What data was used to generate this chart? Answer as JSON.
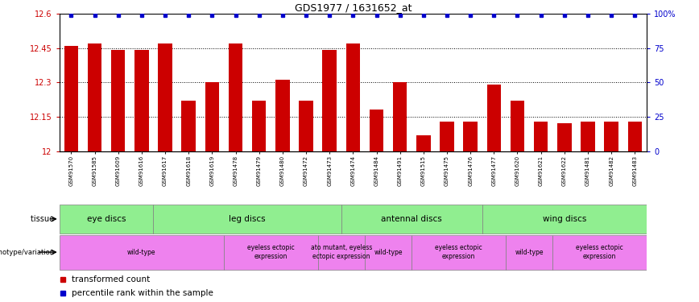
{
  "title": "GDS1977 / 1631652_at",
  "samples": [
    "GSM91570",
    "GSM91585",
    "GSM91609",
    "GSM91616",
    "GSM91617",
    "GSM91618",
    "GSM91619",
    "GSM91478",
    "GSM91479",
    "GSM91480",
    "GSM91472",
    "GSM91473",
    "GSM91474",
    "GSM91484",
    "GSM91491",
    "GSM91515",
    "GSM91475",
    "GSM91476",
    "GSM91477",
    "GSM91620",
    "GSM91621",
    "GSM91622",
    "GSM91481",
    "GSM91482",
    "GSM91483"
  ],
  "bar_values": [
    12.46,
    12.47,
    12.44,
    12.44,
    12.47,
    12.22,
    12.3,
    12.47,
    12.22,
    12.31,
    12.22,
    12.44,
    12.47,
    12.18,
    12.3,
    12.07,
    12.13,
    12.13,
    12.29,
    12.22,
    12.13,
    12.12,
    12.13,
    12.13,
    12.13
  ],
  "ymin": 12.0,
  "ymax": 12.6,
  "yticks": [
    12.0,
    12.15,
    12.3,
    12.45,
    12.6
  ],
  "ytick_labels": [
    "12",
    "12.15",
    "12.3",
    "12.45",
    "12.6"
  ],
  "right_yticks": [
    0,
    25,
    50,
    75,
    100
  ],
  "right_ytick_labels": [
    "0",
    "25",
    "50",
    "75",
    "100%"
  ],
  "bar_color": "#cc0000",
  "dot_color": "#0000cc",
  "tissue_color": "#90ee90",
  "geno_color": "#ee82ee",
  "xtick_bg": "#d3d3d3",
  "tissue_data": [
    {
      "label": "eye discs",
      "start": 0,
      "end": 4
    },
    {
      "label": "leg discs",
      "start": 4,
      "end": 12
    },
    {
      "label": "antennal discs",
      "start": 12,
      "end": 18
    },
    {
      "label": "wing discs",
      "start": 18,
      "end": 25
    }
  ],
  "geno_data": [
    {
      "label": "wild-type",
      "start": 0,
      "end": 7
    },
    {
      "label": "eyeless ectopic\nexpression",
      "start": 7,
      "end": 11
    },
    {
      "label": "ato mutant, eyeless\nectopic expression",
      "start": 11,
      "end": 13
    },
    {
      "label": "wild-type",
      "start": 13,
      "end": 15
    },
    {
      "label": "eyeless ectopic\nexpression",
      "start": 15,
      "end": 19
    },
    {
      "label": "wild-type",
      "start": 19,
      "end": 21
    },
    {
      "label": "eyeless ectopic\nexpression",
      "start": 21,
      "end": 25
    }
  ],
  "legend_items": [
    {
      "color": "#cc0000",
      "label": "transformed count"
    },
    {
      "color": "#0000cc",
      "label": "percentile rank within the sample"
    }
  ]
}
